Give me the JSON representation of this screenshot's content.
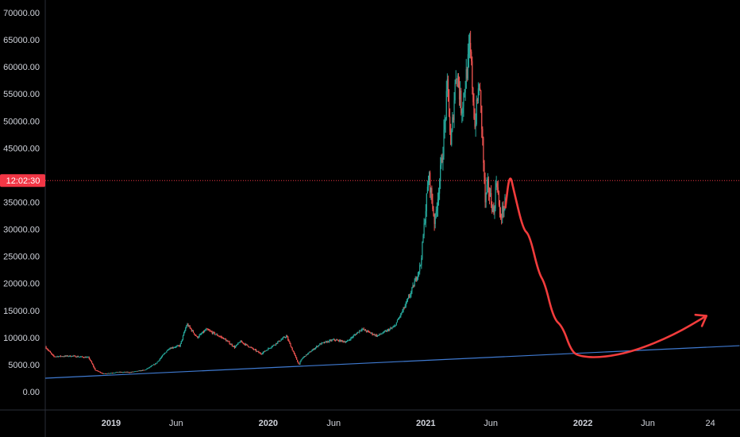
{
  "chart_data": {
    "type": "candlestick",
    "title": "",
    "xlabel": "",
    "ylabel": "",
    "ylim": [
      -2000,
      70000
    ],
    "xlim": [
      "2018-08-01",
      "2023-01-01"
    ],
    "y_ticks": [
      "70000.00",
      "65000.00",
      "60000.00",
      "55000.00",
      "50000.00",
      "45000.00",
      "35000.00",
      "30000.00",
      "25000.00",
      "20000.00",
      "15000.00",
      "10000.00",
      "5000.00",
      "0.00"
    ],
    "x_ticks": [
      {
        "label": "2019",
        "date": "2019-01-01",
        "major": true
      },
      {
        "label": "Jun",
        "date": "2019-06-01",
        "major": false
      },
      {
        "label": "2020",
        "date": "2020-01-01",
        "major": true
      },
      {
        "label": "Jun",
        "date": "2020-06-01",
        "major": false
      },
      {
        "label": "2021",
        "date": "2021-01-01",
        "major": true
      },
      {
        "label": "Jun",
        "date": "2021-06-01",
        "major": false
      },
      {
        "label": "2022",
        "date": "2022-01-01",
        "major": true
      },
      {
        "label": "Jun",
        "date": "2022-06-01",
        "major": false
      },
      {
        "label": "24",
        "date": "2022-10-24",
        "major": false
      }
    ],
    "current_time_badge": "12:02:30",
    "current_price_level": 39000,
    "colors": {
      "up": "#26a69a",
      "down": "#ef5350",
      "trendline": "#3f7ad1",
      "projection": "#f23c3c",
      "badge": "#f23645",
      "price_line": "#f23645"
    },
    "price_path": [
      [
        "2018-08-01",
        8300
      ],
      [
        "2018-08-20",
        6500
      ],
      [
        "2018-10-01",
        6600
      ],
      [
        "2018-11-10",
        6300
      ],
      [
        "2018-11-25",
        4000
      ],
      [
        "2018-12-15",
        3300
      ],
      [
        "2019-01-15",
        3600
      ],
      [
        "2019-02-15",
        3600
      ],
      [
        "2019-03-20",
        4000
      ],
      [
        "2019-04-15",
        5200
      ],
      [
        "2019-05-15",
        8000
      ],
      [
        "2019-06-10",
        8500
      ],
      [
        "2019-06-26",
        12500
      ],
      [
        "2019-07-20",
        10000
      ],
      [
        "2019-08-10",
        11500
      ],
      [
        "2019-09-20",
        9800
      ],
      [
        "2019-10-15",
        8200
      ],
      [
        "2019-10-28",
        9300
      ],
      [
        "2019-12-15",
        7000
      ],
      [
        "2020-01-15",
        8700
      ],
      [
        "2020-02-12",
        10300
      ],
      [
        "2020-03-12",
        5000
      ],
      [
        "2020-03-20",
        6200
      ],
      [
        "2020-04-30",
        8800
      ],
      [
        "2020-06-01",
        9600
      ],
      [
        "2020-07-01",
        9200
      ],
      [
        "2020-08-05",
        11600
      ],
      [
        "2020-09-10",
        10300
      ],
      [
        "2020-10-20",
        12000
      ],
      [
        "2020-11-15",
        16000
      ],
      [
        "2020-12-01",
        19000
      ],
      [
        "2020-12-20",
        23500
      ],
      [
        "2021-01-08",
        40000
      ],
      [
        "2021-01-22",
        31000
      ],
      [
        "2021-02-10",
        45000
      ],
      [
        "2021-02-21",
        57000
      ],
      [
        "2021-02-28",
        45000
      ],
      [
        "2021-03-13",
        60000
      ],
      [
        "2021-03-25",
        52000
      ],
      [
        "2021-04-14",
        63500
      ],
      [
        "2021-04-25",
        49000
      ],
      [
        "2021-05-05",
        57000
      ],
      [
        "2021-05-12",
        48000
      ],
      [
        "2021-05-19",
        35000
      ],
      [
        "2021-05-25",
        38000
      ],
      [
        "2021-06-08",
        33000
      ],
      [
        "2021-06-15",
        40000
      ],
      [
        "2021-06-22",
        32000
      ],
      [
        "2021-07-05",
        35000
      ]
    ],
    "trendline": [
      [
        "2018-08-01",
        2500
      ],
      [
        "2022-12-31",
        8500
      ]
    ],
    "projection_path": [
      [
        "2021-07-05",
        34000
      ],
      [
        "2021-07-15",
        40500
      ],
      [
        "2021-07-25",
        37000
      ],
      [
        "2021-08-15",
        30000
      ],
      [
        "2021-08-30",
        29000
      ],
      [
        "2021-09-20",
        22000
      ],
      [
        "2021-10-05",
        20000
      ],
      [
        "2021-10-25",
        13500
      ],
      [
        "2021-11-15",
        12000
      ],
      [
        "2021-12-05",
        7500
      ],
      [
        "2021-12-25",
        6500
      ],
      [
        "2022-02-15",
        6300
      ],
      [
        "2022-05-01",
        7500
      ],
      [
        "2022-08-01",
        10500
      ],
      [
        "2022-10-15",
        14000
      ]
    ]
  }
}
